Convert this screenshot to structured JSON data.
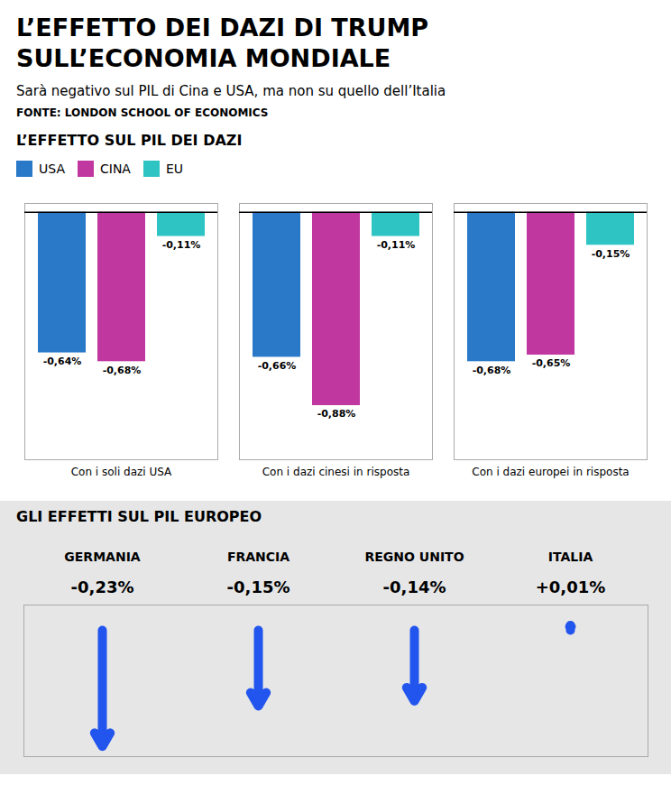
{
  "title": "L’EFFETTO DEI DAZI DI TRUMP\nSULL’ECONOMIA MONDIALE",
  "subtitle": "Sarà negativo sul PIL di Cina e USA, ma non su quello dell’Italia",
  "annotations": [
    "FONTE: LONDON SCHOOL OF ECONOMICS"
  ],
  "chart_data": [
    {
      "type": "bar",
      "title": "L’EFFETTO SUL PIL DEI DAZI",
      "categories": [
        "Con i soli dazi USA",
        "Con i dazi cinesi in risposta",
        "Con i dazi europei in risposta"
      ],
      "series": [
        {
          "name": "USA",
          "color": "#2979C8",
          "values": [
            -0.64,
            -0.66,
            -0.68
          ],
          "value_labels": [
            "-0,64%",
            "-0,66%",
            "-0,68%"
          ]
        },
        {
          "name": "CINA",
          "color": "#C037A0",
          "values": [
            -0.68,
            -0.88,
            -0.65
          ],
          "value_labels": [
            "-0,68%",
            "-0,88%",
            "-0,65%"
          ]
        },
        {
          "name": "EU",
          "color": "#2EC4C4",
          "values": [
            -0.11,
            -0.11,
            -0.15
          ],
          "value_labels": [
            "-0,11%",
            "-0,11%",
            "-0,15%"
          ]
        }
      ],
      "ylim": [
        -1.1264,
        0.04
      ],
      "tick_labels": "x",
      "data_labels": true,
      "legend": "top-left"
    },
    {
      "type": "arrow",
      "title": "GLI EFFETTI SUL PIL EUROPEO",
      "categories": [
        "GERMANIA",
        "FRANCIA",
        "REGNO UNITO",
        "ITALIA"
      ],
      "values": [
        -0.23,
        -0.15,
        -0.14,
        0.01
      ],
      "value_labels": [
        "-0,23%",
        "-0,15%",
        "-0,14%",
        "+0,01%"
      ],
      "color": "#2255EE",
      "ylim": [
        -0.25,
        0.05
      ],
      "tick_labels": "x",
      "data_labels": true
    }
  ]
}
